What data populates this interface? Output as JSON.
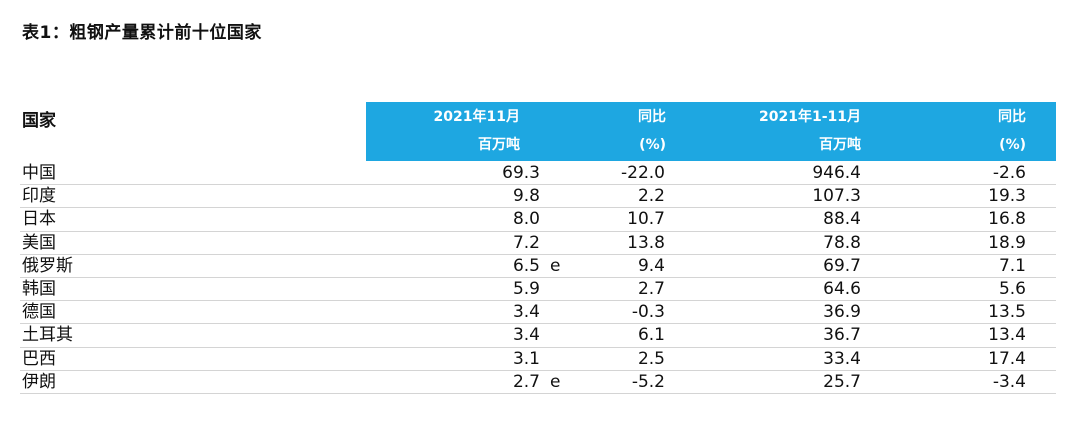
{
  "title": "表1：粗钢产量累计前十位国家",
  "table": {
    "country_header": "国家",
    "header_row1": [
      "2021年11月",
      "同比",
      "2021年1-11月",
      "同比"
    ],
    "header_row2": [
      "百万吨",
      "(%)",
      "百万吨",
      "(%)"
    ],
    "rows": [
      {
        "country": "中国",
        "nov": "69.3",
        "est": "",
        "yoy_nov": "-22.0",
        "ytd": "946.4",
        "yoy_ytd": "-2.6"
      },
      {
        "country": "印度",
        "nov": "9.8",
        "est": "",
        "yoy_nov": "2.2",
        "ytd": "107.3",
        "yoy_ytd": "19.3"
      },
      {
        "country": "日本",
        "nov": "8.0",
        "est": "",
        "yoy_nov": "10.7",
        "ytd": "88.4",
        "yoy_ytd": "16.8"
      },
      {
        "country": "美国",
        "nov": "7.2",
        "est": "",
        "yoy_nov": "13.8",
        "ytd": "78.8",
        "yoy_ytd": "18.9"
      },
      {
        "country": "俄罗斯",
        "nov": "6.5",
        "est": "e",
        "yoy_nov": "9.4",
        "ytd": "69.7",
        "yoy_ytd": "7.1"
      },
      {
        "country": "韩国",
        "nov": "5.9",
        "est": "",
        "yoy_nov": "2.7",
        "ytd": "64.6",
        "yoy_ytd": "5.6"
      },
      {
        "country": "德国",
        "nov": "3.4",
        "est": "",
        "yoy_nov": "-0.3",
        "ytd": "36.9",
        "yoy_ytd": "13.5"
      },
      {
        "country": "土耳其",
        "nov": "3.4",
        "est": "",
        "yoy_nov": "6.1",
        "ytd": "36.7",
        "yoy_ytd": "13.4"
      },
      {
        "country": "巴西",
        "nov": "3.1",
        "est": "",
        "yoy_nov": "2.5",
        "ytd": "33.4",
        "yoy_ytd": "17.4"
      },
      {
        "country": "伊朗",
        "nov": "2.7",
        "est": "e",
        "yoy_nov": "-5.2",
        "ytd": "25.7",
        "yoy_ytd": "-3.4"
      }
    ]
  },
  "colors": {
    "header_bg": "#1ea7e1",
    "header_text": "#ffffff",
    "row_rule": "#d4d4d4"
  }
}
